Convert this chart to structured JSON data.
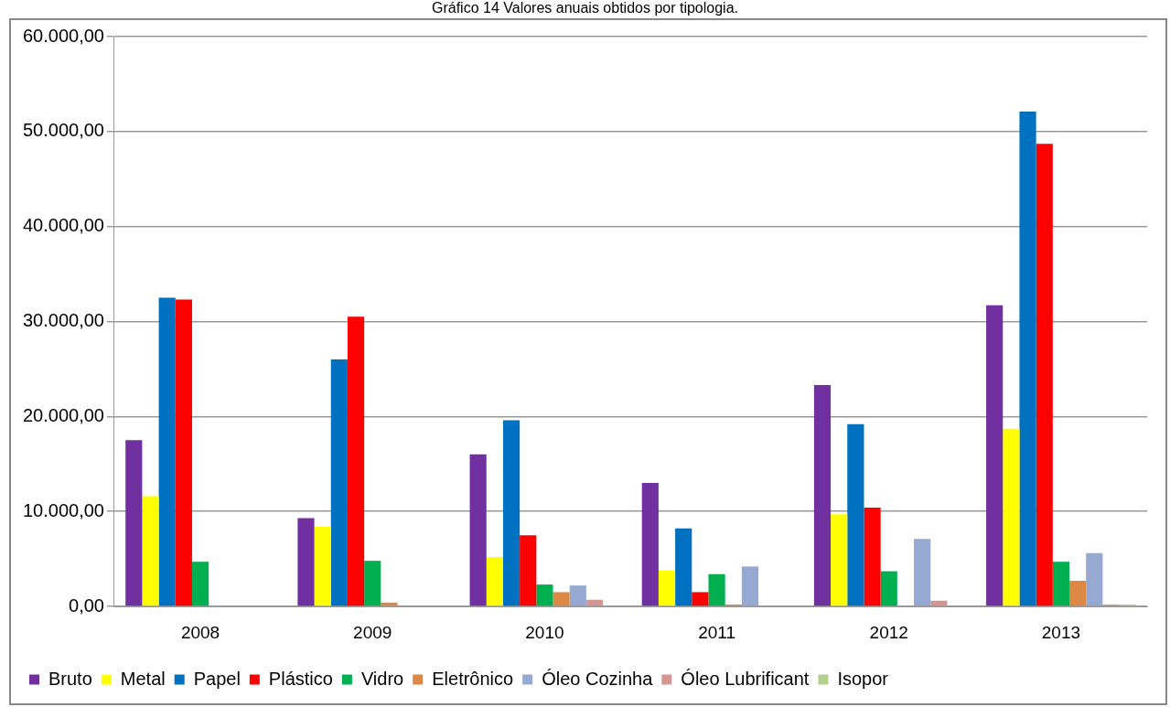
{
  "chart_data": {
    "type": "bar",
    "title": "Gráfico 14 Valores anuais obtidos por tipologia.",
    "categories": [
      "2008",
      "2009",
      "2010",
      "2011",
      "2012",
      "2013"
    ],
    "series": [
      {
        "name": "Bruto",
        "color": "#7030a0",
        "values": [
          17500,
          9300,
          16000,
          13000,
          23300,
          31700
        ]
      },
      {
        "name": "Metal",
        "color": "#ffff00",
        "values": [
          11600,
          8400,
          5200,
          3800,
          9700,
          18700
        ]
      },
      {
        "name": "Papel",
        "color": "#0070c0",
        "values": [
          32500,
          26000,
          19600,
          8200,
          19200,
          52100
        ]
      },
      {
        "name": "Plástico",
        "color": "#ff0000",
        "values": [
          32300,
          30500,
          7500,
          1500,
          10400,
          48700
        ]
      },
      {
        "name": "Vidro",
        "color": "#00b050",
        "values": [
          4700,
          4800,
          2300,
          3400,
          3700,
          4700
        ]
      },
      {
        "name": "Eletrônico",
        "color": "#dd8844",
        "values": [
          null,
          400,
          1500,
          200,
          null,
          2700
        ]
      },
      {
        "name": "Óleo Cozinha",
        "color": "#95a9d2",
        "values": [
          null,
          null,
          2200,
          4200,
          7100,
          5600
        ]
      },
      {
        "name": "Óleo Lubrificant",
        "color": "#d59590",
        "values": [
          null,
          null,
          700,
          null,
          600,
          200
        ]
      },
      {
        "name": "Isopor",
        "color": "#b3cf8e",
        "values": [
          null,
          null,
          null,
          null,
          null,
          200
        ]
      }
    ],
    "ylim": [
      0,
      60000
    ],
    "yticks": [
      {
        "value": 0,
        "label": "0,00"
      },
      {
        "value": 10000,
        "label": "10.000,00"
      },
      {
        "value": 20000,
        "label": "20.000,00"
      },
      {
        "value": 30000,
        "label": "30.000,00"
      },
      {
        "value": 40000,
        "label": "40.000,00"
      },
      {
        "value": 50000,
        "label": "50.000,00"
      },
      {
        "value": 60000,
        "label": "60.000,00"
      }
    ],
    "grid": "y",
    "legend": "bottom"
  }
}
